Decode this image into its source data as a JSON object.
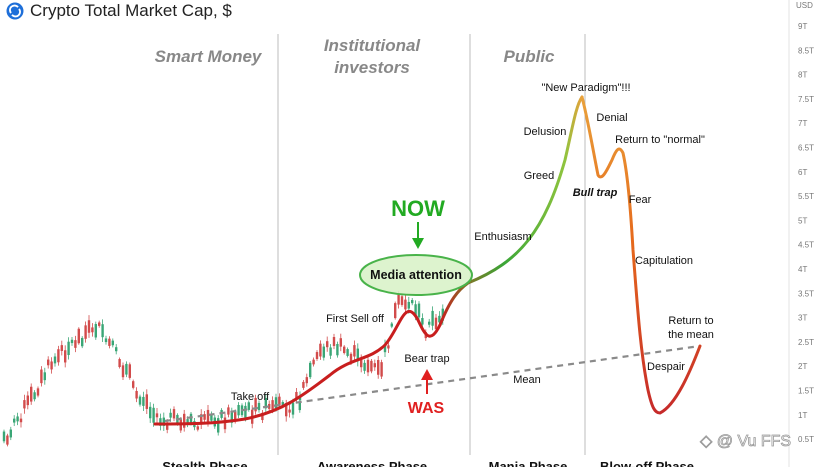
{
  "header": {
    "title": "Crypto Total Market Cap, $",
    "logo_icon": "cycle-logo-icon",
    "logo_color": "#1e6fd9"
  },
  "watermark": "@ Vu FFS",
  "chart_data": {
    "type": "line",
    "title": "Crypto Total Market Cap, $",
    "y_unit": "USD",
    "y_ticks": [
      "9T",
      "8.5T",
      "8T",
      "7.5T",
      "7T",
      "6.5T",
      "6T",
      "5.5T",
      "5T",
      "4.5T",
      "4T",
      "3.5T",
      "3T",
      "2.5T",
      "2T",
      "1.5T",
      "1T",
      "0.5T"
    ],
    "ylim_T": [
      0.45,
      9.4
    ],
    "grid": false,
    "phases_top": [
      "Smart Money",
      "Institutional investors",
      "Public"
    ],
    "phases_bottom": [
      "Stealth Phase",
      "Awareness Phase",
      "Mania Phase",
      "Blow-off Phase"
    ],
    "annotations": [
      {
        "text": "Take off"
      },
      {
        "text": "First Sell off"
      },
      {
        "text": "Media attention"
      },
      {
        "text": "Bear trap"
      },
      {
        "text": "Enthusiasm"
      },
      {
        "text": "Greed"
      },
      {
        "text": "Delusion"
      },
      {
        "text": "\"New Paradigm\"!!!"
      },
      {
        "text": "Denial"
      },
      {
        "text": "Bull trap"
      },
      {
        "text": "Return to \"normal\""
      },
      {
        "text": "Fear"
      },
      {
        "text": "Capitulation"
      },
      {
        "text": "Despair"
      },
      {
        "text": "Return to the mean"
      },
      {
        "text": "Mean"
      }
    ],
    "markers": {
      "now": "NOW",
      "was": "WAS"
    },
    "series": [
      {
        "name": "",
        "kind": "cycle-curve",
        "values_T": [
          0.95,
          0.95,
          0.98,
          1.05,
          1.25,
          1.6,
          1.9,
          2.05,
          2.3,
          2.65,
          3.15,
          2.4,
          2.2,
          2.9,
          3.6,
          4.7,
          6.2,
          7.45,
          5.9,
          6.35,
          6.5,
          5.2,
          3.6,
          2.2,
          1.15,
          1.55,
          2.45
        ]
      },
      {
        "name": "Mean",
        "kind": "trendline",
        "values_T": [
          0.95,
          2.55
        ]
      }
    ],
    "colors": {
      "candle_up": "#3aa676",
      "candle_down": "#d24b4b",
      "curve_early": "#c81e1e",
      "curve_mid": "#3aa637",
      "curve_top": "#e9a13b",
      "curve_late": "#e66a1c",
      "now": "#22aa22",
      "was": "#e02020",
      "ellipse_fill": "#d9f2c9",
      "ellipse_stroke": "#49b34a"
    }
  }
}
